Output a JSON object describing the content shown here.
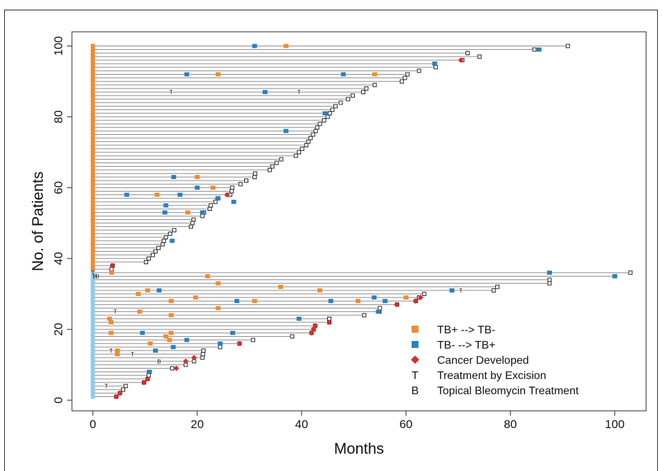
{
  "chart_data": {
    "type": "swimmer",
    "xlabel": "Months",
    "ylabel": "No. of Patients",
    "xlim": [
      -4,
      106
    ],
    "ylim": [
      -3,
      104
    ],
    "xticks": [
      0,
      20,
      40,
      60,
      80,
      100
    ],
    "yticks": [
      0,
      20,
      40,
      60,
      80,
      100
    ],
    "colors": {
      "tb_pos_to_neg": "#f28a30",
      "tb_neg_to_pos": "#2b7fc0",
      "cancer": "#dd2b2b",
      "group_upper": "#f28a30",
      "group_lower": "#8fcbee",
      "line": "#8a8a8a"
    },
    "legend": [
      {
        "symbol": "square",
        "color": "#f28a30",
        "label": "TB+ --> TB-"
      },
      {
        "symbol": "square",
        "color": "#2b7fc0",
        "label": "TB- --> TB+"
      },
      {
        "symbol": "diamond",
        "color": "#dd2b2b",
        "label": "Cancer Developed"
      },
      {
        "symbol": "letter",
        "letter": "T",
        "label": "Treatment by Excision"
      },
      {
        "symbol": "letter",
        "letter": "B",
        "label": "Topical Bleomycin Treatment"
      }
    ],
    "groups": [
      {
        "from": 37,
        "to": 100,
        "color": "#f28a30"
      },
      {
        "from": 1,
        "to": 36,
        "color": "#8fcbee"
      }
    ],
    "patients_end_months": [
      [
        1,
        4.5
      ],
      [
        2,
        5.2
      ],
      [
        3,
        5.8
      ],
      [
        4,
        6.3
      ],
      [
        5,
        9.8
      ],
      [
        6,
        10.5
      ],
      [
        7,
        10.7
      ],
      [
        8,
        10.9
      ],
      [
        9,
        15.2
      ],
      [
        10,
        17.8
      ],
      [
        11,
        19.4
      ],
      [
        12,
        21.0
      ],
      [
        13,
        21.1
      ],
      [
        14,
        21.2
      ],
      [
        15,
        24.4
      ],
      [
        16,
        28.1
      ],
      [
        17,
        30.7
      ],
      [
        18,
        38.2
      ],
      [
        19,
        41.9
      ],
      [
        20,
        42.3
      ],
      [
        21,
        42.6
      ],
      [
        22,
        45.3
      ],
      [
        23,
        45.3
      ],
      [
        24,
        52.0
      ],
      [
        25,
        54.9
      ],
      [
        26,
        55.0
      ],
      [
        27,
        58.3
      ],
      [
        28,
        61.9
      ],
      [
        29,
        62.5
      ],
      [
        30,
        63.5
      ],
      [
        31,
        76.8
      ],
      [
        32,
        77.5
      ],
      [
        33,
        87.5
      ],
      [
        34,
        87.5
      ],
      [
        35,
        100.0
      ],
      [
        36,
        103.0
      ],
      [
        37,
        3.6
      ],
      [
        38,
        3.8
      ],
      [
        39,
        10.2
      ],
      [
        40,
        10.7
      ],
      [
        41,
        11.5
      ],
      [
        42,
        12.0
      ],
      [
        43,
        12.6
      ],
      [
        44,
        13.4
      ],
      [
        45,
        13.6
      ],
      [
        46,
        14.0
      ],
      [
        47,
        14.8
      ],
      [
        48,
        15.6
      ],
      [
        49,
        18.8
      ],
      [
        50,
        19.1
      ],
      [
        51,
        19.3
      ],
      [
        52,
        21.0
      ],
      [
        53,
        21.3
      ],
      [
        54,
        22.4
      ],
      [
        55,
        22.6
      ],
      [
        56,
        23.5
      ],
      [
        57,
        23.9
      ],
      [
        58,
        26.3
      ],
      [
        59,
        26.6
      ],
      [
        60,
        26.7
      ],
      [
        61,
        28.3
      ],
      [
        62,
        29.4
      ],
      [
        63,
        31.0
      ],
      [
        64,
        31.1
      ],
      [
        65,
        33.9
      ],
      [
        66,
        34.4
      ],
      [
        67,
        35.2
      ],
      [
        68,
        36.1
      ],
      [
        69,
        38.9
      ],
      [
        70,
        39.5
      ],
      [
        71,
        40.1
      ],
      [
        72,
        40.9
      ],
      [
        73,
        41.3
      ],
      [
        74,
        41.7
      ],
      [
        75,
        42.2
      ],
      [
        76,
        42.7
      ],
      [
        77,
        43.0
      ],
      [
        78,
        43.5
      ],
      [
        79,
        44.3
      ],
      [
        80,
        45.0
      ],
      [
        81,
        45.4
      ],
      [
        82,
        45.9
      ],
      [
        83,
        46.5
      ],
      [
        84,
        47.5
      ],
      [
        85,
        48.9
      ],
      [
        86,
        49.8
      ],
      [
        87,
        51.8
      ],
      [
        88,
        52.4
      ],
      [
        89,
        54.0
      ],
      [
        90,
        59.2
      ],
      [
        91,
        59.8
      ],
      [
        92,
        60.3
      ],
      [
        93,
        62.5
      ],
      [
        94,
        65.7
      ],
      [
        95,
        65.5
      ],
      [
        96,
        70.8
      ],
      [
        97,
        74.1
      ],
      [
        98,
        71.8
      ],
      [
        99,
        84.6
      ],
      [
        100,
        91.0
      ]
    ],
    "events_tb_pos_to_neg": [
      [
        100,
        37.0
      ],
      [
        92,
        24.0
      ],
      [
        92,
        54.0
      ],
      [
        63,
        20.0
      ],
      [
        60,
        23.0
      ],
      [
        58,
        12.3
      ],
      [
        53,
        18.2
      ],
      [
        36,
        3.6
      ],
      [
        35,
        22.0
      ],
      [
        33,
        24.0
      ],
      [
        32,
        36.0
      ],
      [
        31,
        10.5
      ],
      [
        31,
        43.5
      ],
      [
        30,
        8.7
      ],
      [
        29,
        19.7
      ],
      [
        29,
        60.0
      ],
      [
        28,
        15.0
      ],
      [
        28,
        31.0
      ],
      [
        28,
        50.8
      ],
      [
        26,
        24.0
      ],
      [
        25,
        9.0
      ],
      [
        24,
        15.0
      ],
      [
        23,
        3.2
      ],
      [
        22,
        3.5
      ],
      [
        19,
        3.5
      ],
      [
        19,
        15.0
      ],
      [
        18,
        14.0
      ],
      [
        17,
        14.7
      ],
      [
        16,
        11.0
      ],
      [
        14,
        4.7
      ],
      [
        13,
        4.7
      ]
    ],
    "events_tb_neg_to_pos": [
      [
        100,
        31.0
      ],
      [
        99,
        85.5
      ],
      [
        95,
        65.5
      ],
      [
        92,
        18.0
      ],
      [
        92,
        48.0
      ],
      [
        87,
        33.0
      ],
      [
        81,
        44.5
      ],
      [
        76,
        37.0
      ],
      [
        63,
        15.5
      ],
      [
        60,
        20.0
      ],
      [
        58,
        6.5
      ],
      [
        58,
        16.7
      ],
      [
        57,
        24.0
      ],
      [
        56,
        27.0
      ],
      [
        55,
        14.0
      ],
      [
        53,
        13.8
      ],
      [
        53,
        21.0
      ],
      [
        45,
        15.2
      ],
      [
        36,
        87.5
      ],
      [
        35,
        100.0
      ],
      [
        31,
        12.7
      ],
      [
        31,
        68.8
      ],
      [
        29,
        53.9
      ],
      [
        28,
        27.6
      ],
      [
        28,
        45.6
      ],
      [
        28,
        56.0
      ],
      [
        25,
        54.7
      ],
      [
        23,
        39.5
      ],
      [
        19,
        9.5
      ],
      [
        19,
        26.8
      ],
      [
        17,
        18.0
      ],
      [
        16,
        24.4
      ],
      [
        15,
        15.4
      ],
      [
        14,
        12.0
      ],
      [
        8,
        10.8
      ]
    ],
    "events_cancer": [
      [
        96,
        70.5
      ],
      [
        58,
        25.7
      ],
      [
        38,
        3.7
      ],
      [
        29,
        62.8
      ],
      [
        28,
        61.8
      ],
      [
        27,
        58.2
      ],
      [
        22,
        45.3
      ],
      [
        21,
        42.6
      ],
      [
        20,
        42.3
      ],
      [
        19,
        41.9
      ],
      [
        16,
        28.1
      ],
      [
        12,
        19.4
      ],
      [
        11,
        17.8
      ],
      [
        9,
        16.0
      ],
      [
        6,
        10.5
      ],
      [
        5,
        9.8
      ],
      [
        2,
        5.2
      ],
      [
        1,
        4.5
      ]
    ],
    "events_excision": [
      [
        87,
        15.0
      ],
      [
        87,
        39.5
      ],
      [
        36,
        0
      ],
      [
        31,
        70.5
      ],
      [
        25,
        4.3
      ],
      [
        14,
        3.5
      ],
      [
        13,
        7.6
      ],
      [
        4,
        2.6
      ]
    ],
    "events_bleomycin": [
      [
        35,
        0.4
      ],
      [
        35,
        0.9
      ],
      [
        11,
        12.7
      ]
    ]
  }
}
